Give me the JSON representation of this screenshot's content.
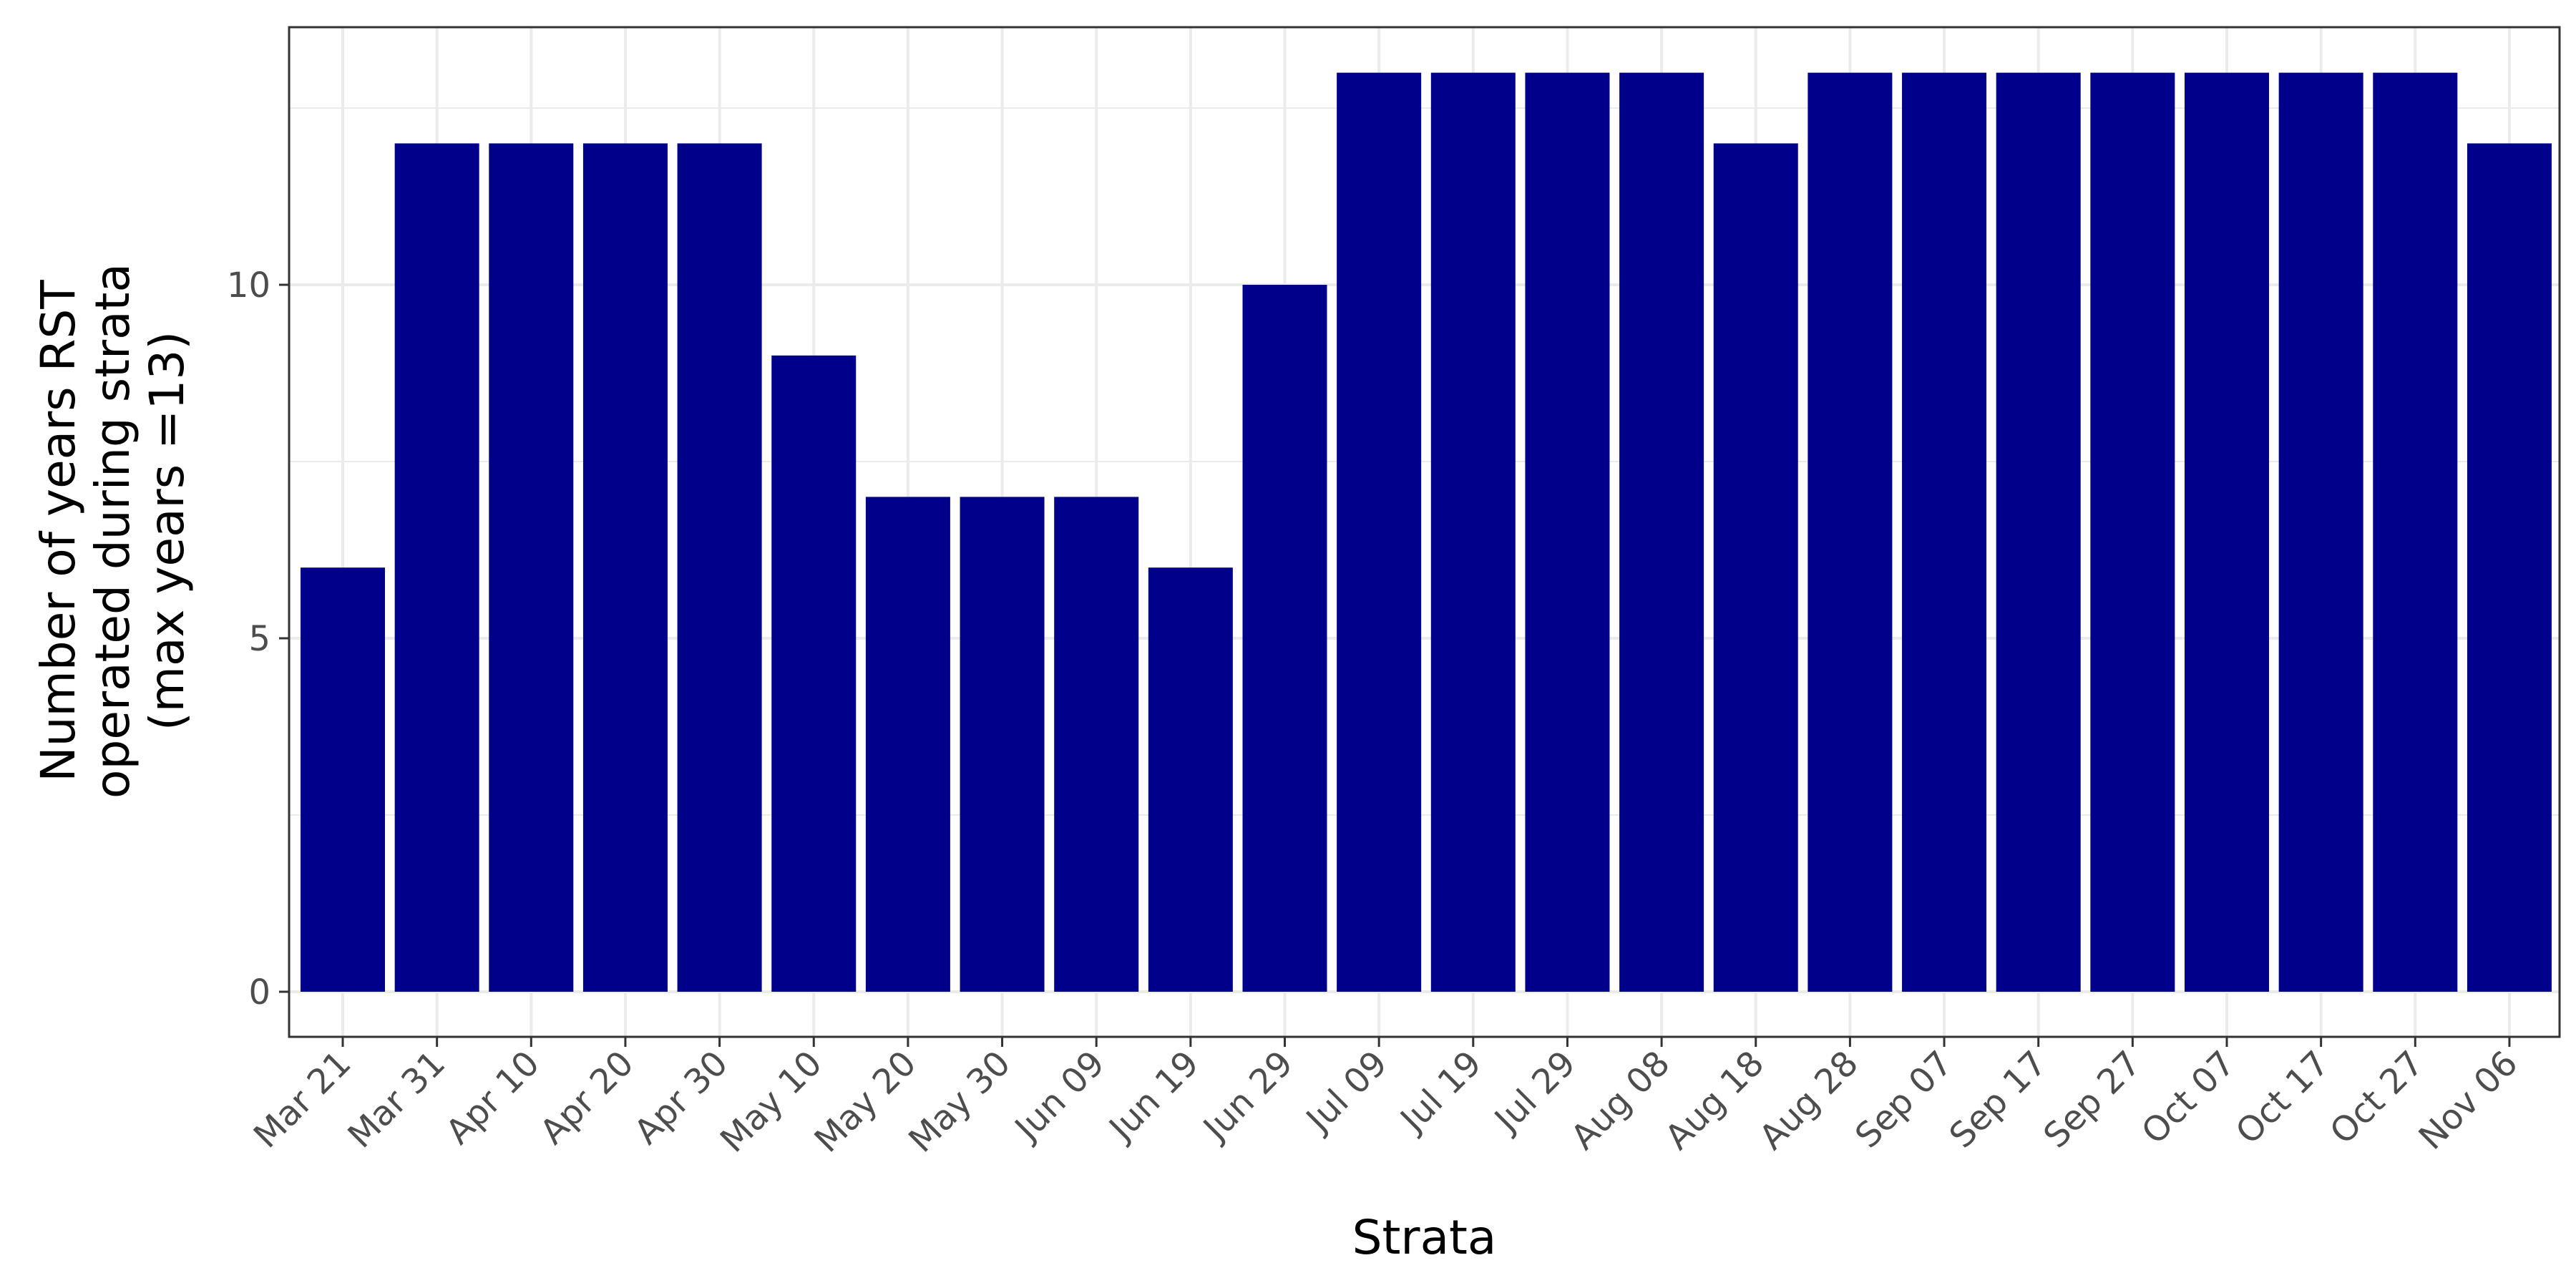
{
  "chart_data": {
    "type": "bar",
    "title": "",
    "xlabel": "Strata",
    "ylabel": [
      "Number of years RST",
      "operated during strata",
      "(max years =13)"
    ],
    "categories": [
      "Mar 21",
      "Mar 31",
      "Apr 10",
      "Apr 20",
      "Apr 30",
      "May 10",
      "May 20",
      "May 30",
      "Jun 09",
      "Jun 19",
      "Jun 29",
      "Jul 09",
      "Jul 19",
      "Jul 29",
      "Aug 08",
      "Aug 18",
      "Aug 28",
      "Sep 07",
      "Sep 17",
      "Sep 27",
      "Oct 07",
      "Oct 17",
      "Oct 27",
      "Nov 06"
    ],
    "values": [
      6,
      12,
      12,
      12,
      12,
      9,
      7,
      7,
      7,
      6,
      10,
      13,
      13,
      13,
      13,
      12,
      13,
      13,
      13,
      13,
      13,
      13,
      13,
      12
    ],
    "ylim": [
      0,
      13.65
    ],
    "yticks": [
      0,
      5,
      10
    ],
    "grid": true,
    "legend": "none",
    "bar_color": "#00008B",
    "grid_color": "#EBEBEB",
    "panel_border_color": "#333333"
  }
}
